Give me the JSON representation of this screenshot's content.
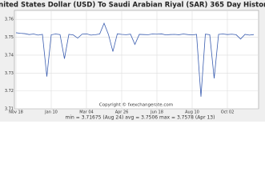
{
  "chart_data": {
    "type": "line",
    "title": "United States Dollar (USD) To Saudi Arabian Riyal (SAR) 365 Day History",
    "copyright": "Copyright © fxexchangerate.com",
    "stats": "min = 3.71675 (Aug 24)   avg = 3.7506   max = 3.7578 (Apr 13)",
    "categories": [
      "Nov 18",
      null,
      null,
      null,
      null,
      null,
      null,
      null,
      "Jan 10",
      null,
      null,
      null,
      null,
      null,
      null,
      null,
      "Mar 04",
      null,
      null,
      null,
      null,
      null,
      null,
      null,
      "Apr 26",
      null,
      null,
      null,
      null,
      null,
      null,
      null,
      "Jun 18",
      null,
      null,
      null,
      null,
      null,
      null,
      null,
      "Aug 10",
      null,
      null,
      null,
      null,
      null,
      null,
      null,
      "Oct 02",
      null,
      null,
      null,
      null,
      null,
      null
    ],
    "series": [
      {
        "name": "USD/SAR",
        "color": "#3a5db0",
        "values": [
          3.7525,
          3.7522,
          3.752,
          3.7515,
          3.7518,
          3.7512,
          3.7516,
          3.728,
          3.7514,
          3.7518,
          3.7515,
          3.738,
          3.7516,
          3.7513,
          3.7495,
          3.7517,
          3.7519,
          3.7512,
          3.7514,
          3.7518,
          3.7578,
          3.7515,
          3.742,
          3.7519,
          3.7516,
          3.7514,
          3.7517,
          3.746,
          3.7516,
          3.7515,
          3.7514,
          3.7518,
          3.7517,
          3.7519,
          3.7513,
          3.7515,
          3.7516,
          3.7514,
          3.7518,
          3.7515,
          3.7513,
          3.7516,
          3.71675,
          3.7517,
          3.7514,
          3.727,
          3.7516,
          3.7518,
          3.7515,
          3.7517,
          3.7514,
          3.749,
          3.7516,
          3.7512,
          3.7515
        ]
      }
    ],
    "ylim": [
      3.71,
      3.765
    ],
    "yticks": [
      3.71,
      3.72,
      3.73,
      3.74,
      3.75,
      3.76
    ],
    "grid": true
  }
}
